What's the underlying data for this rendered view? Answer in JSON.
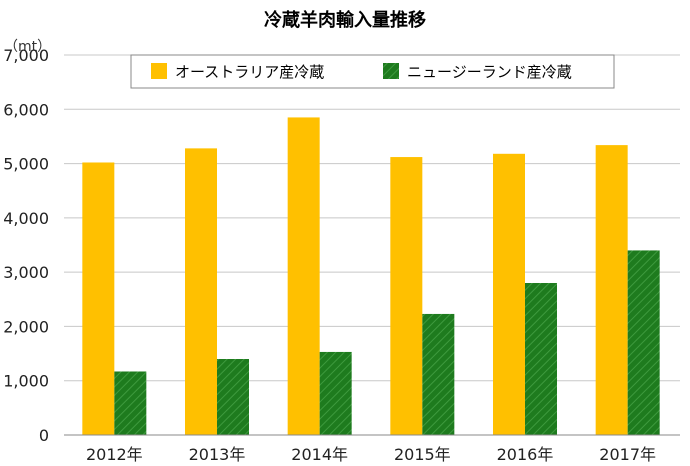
{
  "chart_data": {
    "type": "bar",
    "title": "冷蔵羊肉輸入量推移",
    "unit_label": "（mt）",
    "categories": [
      "2012年",
      "2013年",
      "2014年",
      "2015年",
      "2016年",
      "2017年"
    ],
    "y_ticks": [
      "0",
      "1,000",
      "2,000",
      "3,000",
      "4,000",
      "5,000",
      "6,000",
      "7,000"
    ],
    "ylim": [
      0,
      7000
    ],
    "grid": true,
    "legend_position": "top",
    "series": [
      {
        "name": "オーストラリア産冷蔵",
        "color": "#FFC000",
        "pattern": "solid",
        "values": [
          5020,
          5280,
          5850,
          5120,
          5180,
          5340
        ]
      },
      {
        "name": "ニュージーランド産冷蔵",
        "color": "#1E7B1E",
        "pattern": "diagonal-hatch",
        "values": [
          1170,
          1400,
          1530,
          2230,
          2800,
          3400
        ]
      }
    ]
  }
}
